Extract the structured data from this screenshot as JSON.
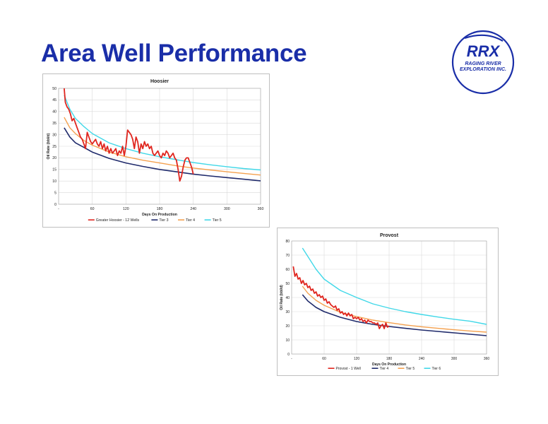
{
  "slide": {
    "title": "Area Well Performance"
  },
  "logo": {
    "text": "RRX",
    "subtext_1": "RAGING RIVER",
    "subtext_2": "EXPLORATION INC.",
    "color": "#1a2ea8"
  },
  "chart_data": [
    {
      "type": "line",
      "title": "Hoosier",
      "xlabel": "Days On Production",
      "ylabel": "Oil Rate (bbl/d)",
      "xlim": [
        0,
        360
      ],
      "ylim": [
        0,
        50
      ],
      "xticks": [
        0,
        60,
        120,
        180,
        240,
        300,
        360
      ],
      "xtick_labels": [
        "-",
        "60",
        "120",
        "180",
        "240",
        "300",
        "360"
      ],
      "yticks": [
        0,
        5,
        10,
        15,
        20,
        25,
        30,
        35,
        40,
        45,
        50
      ],
      "grid": true,
      "legend_position": "bottom",
      "series": [
        {
          "name": "Greater Hoosier - 12 Wells",
          "color": "#e0261f",
          "width": 1.8,
          "x": [
            10,
            12,
            15,
            18,
            21,
            24,
            27,
            30,
            33,
            36,
            39,
            42,
            45,
            48,
            51,
            54,
            57,
            60,
            63,
            66,
            69,
            72,
            75,
            78,
            81,
            84,
            87,
            90,
            93,
            96,
            99,
            102,
            105,
            108,
            111,
            114,
            117,
            120,
            123,
            126,
            129,
            132,
            135,
            138,
            141,
            144,
            147,
            150,
            153,
            156,
            159,
            162,
            165,
            168,
            171,
            174,
            177,
            180,
            183,
            186,
            189,
            192,
            195,
            198,
            201,
            204,
            207,
            210,
            213,
            216,
            219,
            222,
            225,
            228,
            231,
            234,
            237,
            240
          ],
          "y": [
            50,
            44,
            42,
            41,
            39,
            36,
            37,
            35,
            33,
            31,
            29,
            28,
            26,
            24,
            31,
            29,
            27,
            26,
            27,
            28,
            26,
            25,
            27,
            24,
            26,
            23,
            25,
            22,
            24,
            22,
            23,
            24,
            21,
            23,
            22,
            25,
            21,
            25,
            32,
            31,
            30,
            28,
            24,
            29,
            27,
            22,
            26,
            24,
            27,
            25,
            26,
            24,
            25,
            22,
            21,
            22,
            23,
            21,
            20,
            22,
            21,
            23,
            22,
            20,
            21,
            22,
            20,
            19,
            15,
            10,
            12,
            16,
            19,
            20,
            20,
            18,
            16,
            13
          ]
        },
        {
          "name": "Tier 3",
          "color": "#1f2a6b",
          "width": 1.6,
          "x": [
            10,
            20,
            30,
            45,
            60,
            90,
            120,
            150,
            180,
            210,
            240,
            270,
            300,
            330,
            360
          ],
          "y": [
            33,
            29,
            26.5,
            24.5,
            22.5,
            19.8,
            17.8,
            16.3,
            15,
            14,
            13,
            12.2,
            11.5,
            10.8,
            10.1
          ]
        },
        {
          "name": "Tier 4",
          "color": "#f4a14f",
          "width": 1.4,
          "x": [
            10,
            20,
            30,
            45,
            60,
            90,
            120,
            150,
            180,
            210,
            240,
            270,
            300,
            330,
            360
          ],
          "y": [
            37.5,
            33,
            30.5,
            27.5,
            25.5,
            22.5,
            20.5,
            19,
            17.8,
            16.6,
            15.6,
            14.8,
            14,
            13.3,
            12.6
          ]
        },
        {
          "name": "Tier 5",
          "color": "#41d8e8",
          "width": 1.4,
          "x": [
            10,
            20,
            30,
            45,
            60,
            90,
            120,
            150,
            180,
            210,
            240,
            270,
            300,
            330,
            360
          ],
          "y": [
            47,
            41,
            37,
            33.5,
            30.5,
            26.5,
            24,
            22,
            20.5,
            19.2,
            18,
            17,
            16.2,
            15.4,
            14.8
          ]
        }
      ]
    },
    {
      "type": "line",
      "title": "Provost",
      "xlabel": "Days On Production",
      "ylabel": "Oil Rate (bbl/d)",
      "xlim": [
        0,
        360
      ],
      "ylim": [
        0,
        80
      ],
      "xticks": [
        0,
        60,
        120,
        180,
        240,
        300,
        360
      ],
      "xtick_labels": [
        "-",
        "60",
        "120",
        "180",
        "240",
        "300",
        "360"
      ],
      "yticks": [
        0,
        10,
        20,
        30,
        40,
        50,
        60,
        70,
        80
      ],
      "grid": true,
      "legend_position": "bottom",
      "series": [
        {
          "name": "Provost - 1 Well",
          "color": "#e0261f",
          "width": 1.8,
          "x": [
            3,
            6,
            9,
            12,
            15,
            18,
            21,
            24,
            27,
            30,
            33,
            36,
            39,
            42,
            45,
            48,
            51,
            54,
            57,
            60,
            63,
            66,
            69,
            72,
            75,
            78,
            81,
            84,
            87,
            90,
            93,
            96,
            99,
            102,
            105,
            108,
            111,
            114,
            117,
            120,
            123,
            126,
            129,
            132,
            135,
            138,
            141,
            144,
            147,
            150,
            153,
            156,
            159,
            162,
            165,
            168,
            171,
            174,
            177,
            180
          ],
          "y": [
            62,
            55,
            57,
            53,
            54,
            50,
            52,
            49,
            50,
            47,
            48,
            45,
            46,
            43,
            44,
            41,
            42,
            40,
            41,
            38,
            39,
            36,
            37,
            35,
            34,
            33,
            34,
            31,
            32,
            29,
            30,
            28,
            29,
            27,
            29,
            27,
            28,
            25,
            26,
            25,
            26,
            24,
            25,
            23,
            24,
            22,
            24,
            23,
            23,
            22,
            22,
            21,
            22,
            18,
            20,
            21,
            18,
            22,
            19,
            20
          ]
        },
        {
          "name": "Tier 4",
          "color": "#1f2a6b",
          "width": 1.6,
          "x": [
            20,
            30,
            45,
            60,
            90,
            120,
            150,
            180,
            210,
            240,
            270,
            300,
            330,
            360
          ],
          "y": [
            42,
            37.5,
            33,
            30,
            26,
            23,
            21,
            19.5,
            18.2,
            17,
            16,
            15,
            14,
            13
          ]
        },
        {
          "name": "Tier 5",
          "color": "#f4a14f",
          "width": 1.4,
          "x": [
            20,
            30,
            45,
            60,
            90,
            120,
            150,
            180,
            210,
            240,
            270,
            300,
            330,
            360
          ],
          "y": [
            48,
            43,
            38,
            34.5,
            29.5,
            26.5,
            24,
            22.2,
            20.6,
            19.3,
            18.2,
            17.2,
            16.3,
            15.5
          ]
        },
        {
          "name": "Tier 6",
          "color": "#41d8e8",
          "width": 1.4,
          "x": [
            20,
            30,
            45,
            60,
            90,
            120,
            150,
            180,
            210,
            240,
            270,
            300,
            330,
            360
          ],
          "y": [
            75,
            69,
            60,
            53,
            45,
            40,
            35.5,
            32.5,
            30,
            28,
            26.2,
            24.6,
            23.2,
            21
          ]
        }
      ]
    }
  ]
}
